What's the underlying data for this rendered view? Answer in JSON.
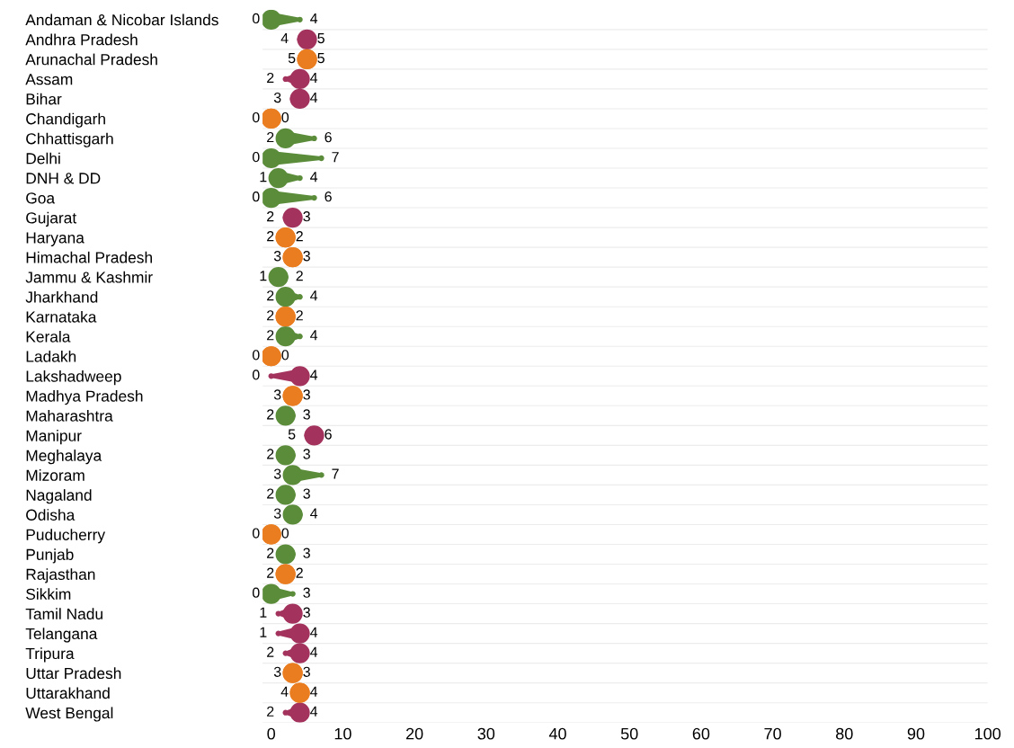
{
  "chart_data": {
    "type": "scatter",
    "orientation": "horizontal",
    "categories": [
      "Andaman & Nicobar Islands",
      "Andhra Pradesh",
      "Arunachal Pradesh",
      "Assam",
      "Bihar",
      "Chandigarh",
      "Chhattisgarh",
      "Delhi",
      "DNH & DD",
      "Goa",
      "Gujarat",
      "Haryana",
      "Himachal Pradesh",
      "Jammu & Kashmir",
      "Jharkhand",
      "Karnataka",
      "Kerala",
      "Ladakh",
      "Lakshadweep",
      "Madhya Pradesh",
      "Maharashtra",
      "Manipur",
      "Meghalaya",
      "Mizoram",
      "Nagaland",
      "Odisha",
      "Puducherry",
      "Punjab",
      "Rajasthan",
      "Sikkim",
      "Tamil Nadu",
      "Telangana",
      "Tripura",
      "Uttar Pradesh",
      "Uttarakhand",
      "West Bengal"
    ],
    "series": [
      {
        "values": [
          4,
          4,
          5,
          2,
          3,
          0,
          6,
          7,
          4,
          6,
          2,
          2,
          3,
          2,
          4,
          2,
          4,
          0,
          0,
          3,
          3,
          5,
          3,
          7,
          3,
          4,
          0,
          3,
          2,
          3,
          1,
          1,
          2,
          3,
          4,
          2
        ],
        "marker": "circle",
        "sizes": [
          0.08,
          0.08,
          1,
          0.08,
          0.08,
          1,
          0.08,
          0.08,
          0.08,
          0.08,
          0.08,
          1,
          1,
          0.08,
          0.08,
          1,
          0.08,
          1,
          0.08,
          1,
          0.08,
          0.08,
          0.08,
          0.08,
          0.08,
          0.08,
          1,
          0.08,
          1,
          0.08,
          0.08,
          0.08,
          0.08,
          1,
          1,
          0.08
        ],
        "colors": [
          "#5b8c3a",
          "#a3335d",
          "#ea7d1f",
          "#a3335d",
          "#a3335d",
          "#ea7d1f",
          "#5b8c3a",
          "#5b8c3a",
          "#5b8c3a",
          "#5b8c3a",
          "#a3335d",
          "#ea7d1f",
          "#ea7d1f",
          "#5b8c3a",
          "#5b8c3a",
          "#ea7d1f",
          "#5b8c3a",
          "#ea7d1f",
          "#a3335d",
          "#ea7d1f",
          "#5b8c3a",
          "#a3335d",
          "#5b8c3a",
          "#5b8c3a",
          "#5b8c3a",
          "#5b8c3a",
          "#ea7d1f",
          "#5b8c3a",
          "#ea7d1f",
          "#5b8c3a",
          "#a3335d",
          "#a3335d",
          "#a3335d",
          "#ea7d1f",
          "#ea7d1f",
          "#a3335d"
        ]
      },
      {
        "values": [
          0,
          5,
          5,
          4,
          4,
          0,
          2,
          0,
          1,
          0,
          3,
          2,
          3,
          1,
          2,
          2,
          2,
          0,
          4,
          3,
          2,
          6,
          2,
          3,
          2,
          3,
          0,
          2,
          2,
          0,
          3,
          4,
          4,
          3,
          4,
          4
        ],
        "marker": "circle",
        "sizes": [
          1,
          1,
          1,
          1,
          1,
          1,
          1,
          1,
          1,
          1,
          1,
          1,
          1,
          1,
          1,
          1,
          1,
          1,
          1,
          1,
          1,
          1,
          1,
          1,
          1,
          1,
          1,
          1,
          1,
          1,
          1,
          1,
          1,
          1,
          1,
          1
        ],
        "colors": [
          "#5b8c3a",
          "#a3335d",
          "#ea7d1f",
          "#a3335d",
          "#a3335d",
          "#ea7d1f",
          "#5b8c3a",
          "#5b8c3a",
          "#5b8c3a",
          "#5b8c3a",
          "#a3335d",
          "#ea7d1f",
          "#ea7d1f",
          "#5b8c3a",
          "#5b8c3a",
          "#ea7d1f",
          "#5b8c3a",
          "#ea7d1f",
          "#a3335d",
          "#ea7d1f",
          "#5b8c3a",
          "#a3335d",
          "#5b8c3a",
          "#5b8c3a",
          "#5b8c3a",
          "#5b8c3a",
          "#ea7d1f",
          "#5b8c3a",
          "#ea7d1f",
          "#5b8c3a",
          "#a3335d",
          "#a3335d",
          "#a3335d",
          "#ea7d1f",
          "#ea7d1f",
          "#a3335d"
        ]
      }
    ],
    "xlim": [
      -1.2,
      100
    ],
    "xticks": [
      0,
      10,
      20,
      30,
      40,
      50,
      60,
      70,
      80,
      90,
      100
    ],
    "grid": "y",
    "data_labels": true,
    "legend": false
  }
}
